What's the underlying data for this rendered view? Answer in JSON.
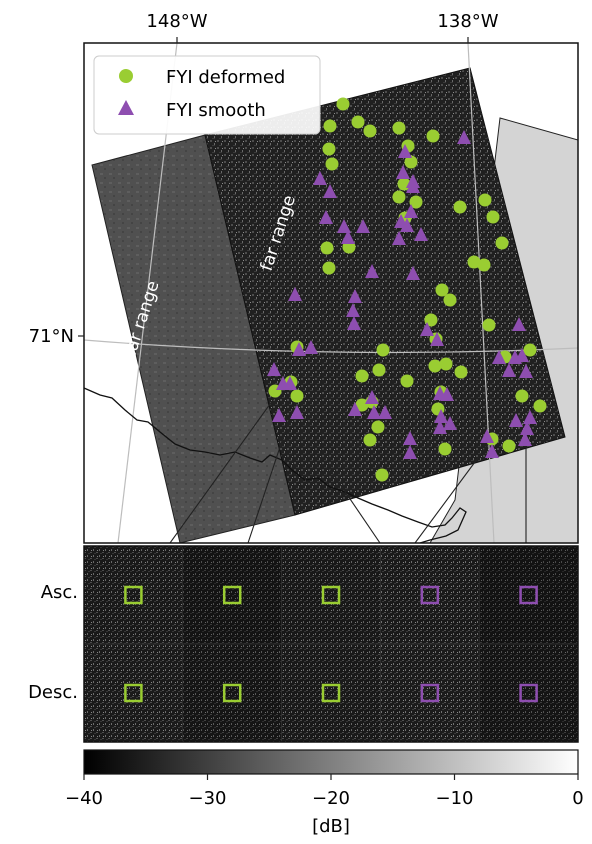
{
  "map": {
    "lon_labels": [
      "148°W",
      "138°W"
    ],
    "lat_label": "71°N",
    "swath_labels": {
      "near": "near range",
      "far": "far range"
    }
  },
  "legend": [
    {
      "label": "FYI deformed",
      "marker": "circle",
      "color": "#9acd32"
    },
    {
      "label": "FYI smooth",
      "marker": "triangle",
      "color": "#8e4eb0"
    }
  ],
  "points": {
    "deformed": [
      [
        330,
        126
      ],
      [
        343,
        104
      ],
      [
        358,
        122
      ],
      [
        370,
        131
      ],
      [
        399,
        128
      ],
      [
        433,
        136
      ],
      [
        329,
        149
      ],
      [
        332,
        164
      ],
      [
        411,
        162
      ],
      [
        408,
        146
      ],
      [
        404,
        184
      ],
      [
        405,
        218
      ],
      [
        460,
        207
      ],
      [
        485,
        200
      ],
      [
        493,
        217
      ],
      [
        502,
        243
      ],
      [
        327,
        248
      ],
      [
        349,
        247
      ],
      [
        329,
        268
      ],
      [
        399,
        197
      ],
      [
        416,
        202
      ],
      [
        442,
        290
      ],
      [
        450,
        300
      ],
      [
        431,
        320
      ],
      [
        436,
        339
      ],
      [
        474,
        262
      ],
      [
        484,
        265
      ],
      [
        489,
        325
      ],
      [
        297,
        347
      ],
      [
        383,
        350
      ],
      [
        362,
        376
      ],
      [
        379,
        370
      ],
      [
        435,
        366
      ],
      [
        446,
        364
      ],
      [
        441,
        392
      ],
      [
        407,
        381
      ],
      [
        275,
        391
      ],
      [
        297,
        396
      ],
      [
        291,
        382
      ],
      [
        362,
        405
      ],
      [
        372,
        402
      ],
      [
        378,
        427
      ],
      [
        370,
        440
      ],
      [
        382,
        475
      ],
      [
        445,
        449
      ],
      [
        438,
        409
      ],
      [
        492,
        439
      ],
      [
        509,
        446
      ],
      [
        505,
        357
      ],
      [
        530,
        350
      ],
      [
        522,
        396
      ],
      [
        540,
        406
      ],
      [
        461,
        372
      ]
    ],
    "smooth": [
      [
        320,
        179
      ],
      [
        330,
        192
      ],
      [
        344,
        227
      ],
      [
        348,
        238
      ],
      [
        326,
        218
      ],
      [
        363,
        227
      ],
      [
        372,
        272
      ],
      [
        399,
        239
      ],
      [
        401,
        222
      ],
      [
        407,
        226
      ],
      [
        411,
        212
      ],
      [
        421,
        235
      ],
      [
        413,
        182
      ],
      [
        403,
        173
      ],
      [
        405,
        152
      ],
      [
        413,
        187
      ],
      [
        464,
        138
      ],
      [
        295,
        295
      ],
      [
        355,
        297
      ],
      [
        353,
        311
      ],
      [
        354,
        324
      ],
      [
        274,
        370
      ],
      [
        290,
        384
      ],
      [
        283,
        384
      ],
      [
        279,
        416
      ],
      [
        297,
        413
      ],
      [
        311,
        348
      ],
      [
        299,
        350
      ],
      [
        374,
        413
      ],
      [
        355,
        410
      ],
      [
        413,
        274
      ],
      [
        437,
        340
      ],
      [
        440,
        394
      ],
      [
        450,
        424
      ],
      [
        440,
        428
      ],
      [
        441,
        417
      ],
      [
        447,
        395
      ],
      [
        427,
        330
      ],
      [
        519,
        325
      ],
      [
        499,
        358
      ],
      [
        509,
        371
      ],
      [
        522,
        356
      ],
      [
        515,
        358
      ],
      [
        526,
        372
      ],
      [
        516,
        421
      ],
      [
        530,
        418
      ],
      [
        527,
        429
      ],
      [
        525,
        440
      ],
      [
        487,
        437
      ],
      [
        492,
        452
      ],
      [
        410,
        453
      ],
      [
        410,
        439
      ],
      [
        385,
        413
      ],
      [
        372,
        398
      ]
    ]
  },
  "panel": {
    "row_labels": [
      "Asc.",
      "Desc."
    ],
    "box_colors": [
      "#9acd32",
      "#9acd32",
      "#9acd32",
      "#8e4eb0",
      "#8e4eb0"
    ]
  },
  "colorbar": {
    "ticks": [
      "−40",
      "−30",
      "−20",
      "−10",
      "0"
    ],
    "tick_values": [
      -40,
      -30,
      -20,
      -10,
      0
    ],
    "range": [
      -40,
      0
    ],
    "label": "[dB]"
  }
}
